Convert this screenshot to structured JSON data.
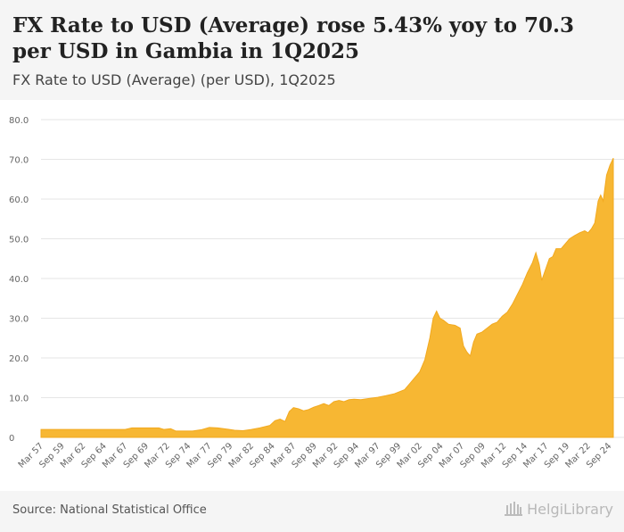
{
  "header": {
    "title": "FX Rate to USD (Average) rose 5.43% yoy to 70.3 per USD in Gambia in 1Q2025",
    "subtitle": "FX Rate to USD (Average) (per USD), 1Q2025"
  },
  "footer": {
    "source": "Source: National Statistical Office",
    "brand": "HelgiLibrary"
  },
  "colors": {
    "area": "#f7b733",
    "grid": "#e6e6e6",
    "tick_text": "#666666"
  },
  "chart_data": {
    "type": "area",
    "title": "FX Rate to USD (Average) (per USD), 1Q2025",
    "xlabel": "",
    "ylabel": "",
    "ylim": [
      0,
      80
    ],
    "yticks": [
      "0",
      "10.0",
      "20.0",
      "30.0",
      "40.0",
      "50.0",
      "60.0",
      "70.0",
      "80.0"
    ],
    "xlim": [
      1957.0,
      2025.0
    ],
    "xticks": [
      {
        "label": "Mar 57",
        "t": 1957.0
      },
      {
        "label": "Sep 59",
        "t": 1959.5
      },
      {
        "label": "Mar 62",
        "t": 1962.0
      },
      {
        "label": "Sep 64",
        "t": 1964.5
      },
      {
        "label": "Mar 67",
        "t": 1967.0
      },
      {
        "label": "Sep 69",
        "t": 1969.5
      },
      {
        "label": "Mar 72",
        "t": 1972.0
      },
      {
        "label": "Sep 74",
        "t": 1974.5
      },
      {
        "label": "Mar 77",
        "t": 1977.0
      },
      {
        "label": "Sep 79",
        "t": 1979.5
      },
      {
        "label": "Mar 82",
        "t": 1982.0
      },
      {
        "label": "Sep 84",
        "t": 1984.5
      },
      {
        "label": "Mar 87",
        "t": 1987.0
      },
      {
        "label": "Sep 89",
        "t": 1989.5
      },
      {
        "label": "Mar 92",
        "t": 1992.0
      },
      {
        "label": "Sep 94",
        "t": 1994.5
      },
      {
        "label": "Mar 97",
        "t": 1997.0
      },
      {
        "label": "Sep 99",
        "t": 1999.5
      },
      {
        "label": "Mar 02",
        "t": 2002.0
      },
      {
        "label": "Sep 04",
        "t": 2004.5
      },
      {
        "label": "Mar 07",
        "t": 2007.0
      },
      {
        "label": "Sep 09",
        "t": 2009.5
      },
      {
        "label": "Mar 12",
        "t": 2012.0
      },
      {
        "label": "Sep 14",
        "t": 2014.5
      },
      {
        "label": "Mar 17",
        "t": 2017.0
      },
      {
        "label": "Sep 19",
        "t": 2019.5
      },
      {
        "label": "Mar 22",
        "t": 2022.0
      },
      {
        "label": "Sep 24",
        "t": 2024.5
      }
    ],
    "series": [
      {
        "name": "FX Rate to USD (Average)",
        "points": [
          [
            1957.0,
            2.0
          ],
          [
            1962.0,
            2.0
          ],
          [
            1967.0,
            2.0
          ],
          [
            1967.8,
            2.4
          ],
          [
            1971.0,
            2.4
          ],
          [
            1971.6,
            2.0
          ],
          [
            1972.4,
            2.2
          ],
          [
            1973.0,
            1.6
          ],
          [
            1975.0,
            1.6
          ],
          [
            1976.0,
            1.9
          ],
          [
            1977.0,
            2.5
          ],
          [
            1978.0,
            2.4
          ],
          [
            1979.0,
            2.1
          ],
          [
            1980.0,
            1.8
          ],
          [
            1981.0,
            1.7
          ],
          [
            1982.0,
            2.0
          ],
          [
            1983.0,
            2.4
          ],
          [
            1984.2,
            3.0
          ],
          [
            1984.8,
            4.2
          ],
          [
            1985.4,
            4.6
          ],
          [
            1986.0,
            4.0
          ],
          [
            1986.5,
            6.5
          ],
          [
            1987.0,
            7.5
          ],
          [
            1987.6,
            7.2
          ],
          [
            1988.2,
            6.7
          ],
          [
            1988.8,
            7.0
          ],
          [
            1989.4,
            7.6
          ],
          [
            1990.0,
            8.0
          ],
          [
            1990.6,
            8.5
          ],
          [
            1991.2,
            8.0
          ],
          [
            1991.8,
            9.0
          ],
          [
            1992.4,
            9.3
          ],
          [
            1993.0,
            9.0
          ],
          [
            1993.6,
            9.5
          ],
          [
            1994.2,
            9.6
          ],
          [
            1995.0,
            9.5
          ],
          [
            1996.0,
            9.8
          ],
          [
            1997.0,
            10.1
          ],
          [
            1998.0,
            10.5
          ],
          [
            1999.0,
            11.0
          ],
          [
            1999.6,
            11.5
          ],
          [
            2000.2,
            12.0
          ],
          [
            2000.8,
            13.5
          ],
          [
            2001.4,
            15.0
          ],
          [
            2002.0,
            16.5
          ],
          [
            2002.6,
            19.5
          ],
          [
            2003.2,
            25.0
          ],
          [
            2003.6,
            30.0
          ],
          [
            2004.0,
            31.8
          ],
          [
            2004.4,
            30.0
          ],
          [
            2004.8,
            29.5
          ],
          [
            2005.4,
            28.5
          ],
          [
            2006.2,
            28.2
          ],
          [
            2006.8,
            27.5
          ],
          [
            2007.2,
            23.0
          ],
          [
            2007.6,
            21.5
          ],
          [
            2008.0,
            20.5
          ],
          [
            2008.4,
            24.0
          ],
          [
            2008.8,
            26.0
          ],
          [
            2009.4,
            26.5
          ],
          [
            2010.0,
            27.5
          ],
          [
            2010.6,
            28.5
          ],
          [
            2011.2,
            29.0
          ],
          [
            2011.8,
            30.5
          ],
          [
            2012.4,
            31.5
          ],
          [
            2013.0,
            33.5
          ],
          [
            2013.6,
            36.0
          ],
          [
            2014.2,
            38.5
          ],
          [
            2014.8,
            41.5
          ],
          [
            2015.4,
            44.0
          ],
          [
            2015.8,
            46.5
          ],
          [
            2016.2,
            43.5
          ],
          [
            2016.5,
            39.5
          ],
          [
            2016.9,
            42.0
          ],
          [
            2017.4,
            45.0
          ],
          [
            2017.8,
            45.5
          ],
          [
            2018.2,
            47.5
          ],
          [
            2018.8,
            47.5
          ],
          [
            2019.4,
            49.0
          ],
          [
            2019.8,
            50.0
          ],
          [
            2020.4,
            50.8
          ],
          [
            2021.0,
            51.5
          ],
          [
            2021.6,
            52.0
          ],
          [
            2022.0,
            51.5
          ],
          [
            2022.4,
            52.5
          ],
          [
            2022.8,
            54.0
          ],
          [
            2023.2,
            59.5
          ],
          [
            2023.5,
            61.0
          ],
          [
            2023.8,
            59.5
          ],
          [
            2024.2,
            66.0
          ],
          [
            2024.6,
            68.5
          ],
          [
            2025.0,
            70.3
          ]
        ]
      }
    ],
    "legend": "none",
    "grid": true
  }
}
